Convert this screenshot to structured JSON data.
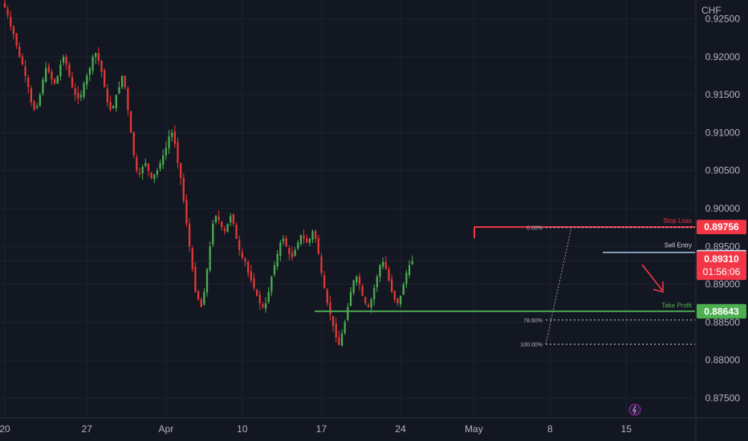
{
  "currency": "CHF",
  "colors": {
    "background": "#131722",
    "grid": "#1e2230",
    "bull": "#4caf50",
    "bear": "#e53935",
    "stop_loss": "#f23645",
    "take_profit": "#4caf50",
    "sell_entry": "#9fc5e8",
    "axis_text": "#b2b5be",
    "fib_dotted": "#d1d4dc"
  },
  "chart_data": {
    "type": "candlestick",
    "y_axis": {
      "min": 0.8725,
      "max": 0.9275,
      "ticks": [
        "0.92500",
        "0.92000",
        "0.91500",
        "0.91000",
        "0.90500",
        "0.90000",
        "0.89500",
        "0.89000",
        "0.88500",
        "0.88000",
        "0.87500"
      ],
      "tick_values": [
        0.925,
        0.92,
        0.915,
        0.91,
        0.905,
        0.9,
        0.895,
        0.89,
        0.885,
        0.88,
        0.875
      ]
    },
    "x_axis": {
      "labels": [
        "20",
        "27",
        "Apr",
        "10",
        "17",
        "24",
        "May",
        "8",
        "15"
      ],
      "label_bar_index": [
        0,
        28,
        55,
        81,
        108,
        135,
        160,
        186,
        212
      ]
    },
    "close_path": [
      0.9265,
      0.9255,
      0.924,
      0.923,
      0.9215,
      0.92,
      0.919,
      0.9175,
      0.916,
      0.914,
      0.913,
      0.9135,
      0.915,
      0.917,
      0.9185,
      0.918,
      0.917,
      0.9165,
      0.9175,
      0.919,
      0.92,
      0.919,
      0.9175,
      0.916,
      0.915,
      0.9145,
      0.915,
      0.9165,
      0.9175,
      0.9185,
      0.92,
      0.9205,
      0.9195,
      0.918,
      0.916,
      0.914,
      0.913,
      0.9135,
      0.915,
      0.916,
      0.9175,
      0.916,
      0.913,
      0.91,
      0.907,
      0.905,
      0.9045,
      0.9055,
      0.906,
      0.905,
      0.904,
      0.9045,
      0.905,
      0.906,
      0.907,
      0.908,
      0.9095,
      0.91,
      0.9085,
      0.906,
      0.904,
      0.901,
      0.898,
      0.895,
      0.892,
      0.889,
      0.888,
      0.887,
      0.889,
      0.892,
      0.895,
      0.898,
      0.899,
      0.8985,
      0.8975,
      0.897,
      0.898,
      0.899,
      0.898,
      0.896,
      0.8945,
      0.8935,
      0.893,
      0.8915,
      0.8905,
      0.8895,
      0.8885,
      0.8875,
      0.887,
      0.8875,
      0.889,
      0.891,
      0.8925,
      0.894,
      0.8955,
      0.896,
      0.895,
      0.894,
      0.8935,
      0.8945,
      0.8955,
      0.8965,
      0.896,
      0.8955,
      0.896,
      0.897,
      0.896,
      0.894,
      0.8915,
      0.8895,
      0.8875,
      0.886,
      0.8845,
      0.883,
      0.882,
      0.8835,
      0.885,
      0.887,
      0.889,
      0.8905,
      0.891,
      0.89,
      0.8885,
      0.8875,
      0.887,
      0.888,
      0.8895,
      0.891,
      0.8925,
      0.893,
      0.892,
      0.8905,
      0.889,
      0.888,
      0.8875,
      0.8885,
      0.89,
      0.8915,
      0.8925,
      0.8931
    ],
    "levels": {
      "stop_loss": {
        "label": "Stop Loss",
        "price": "0.89756",
        "value": 0.89756
      },
      "sell_entry": {
        "label": "Sell Entry",
        "price": "0.89421",
        "value": 0.89421
      },
      "take_profit": {
        "label": "Take Profit",
        "price": "0.88643",
        "value": 0.88643
      },
      "current": {
        "price": "0.89310",
        "value": 0.8931,
        "countdown": "01:56:06"
      }
    },
    "fibonacci": [
      {
        "label": "0.00%",
        "value": 0.8975
      },
      {
        "label": "78.60%",
        "value": 0.8853
      },
      {
        "label": "100.00%",
        "value": 0.8821
      }
    ]
  }
}
